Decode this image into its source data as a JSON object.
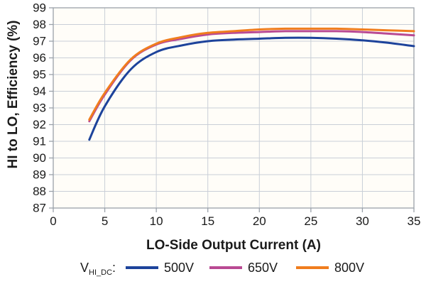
{
  "figure": {
    "background": "#ffffff",
    "plot_background": "#fffdf8"
  },
  "chart_data": {
    "type": "line",
    "title": "",
    "xlabel": "LO-Side Output Current (A)",
    "ylabel": "HI to LO, Efficiency (%)",
    "xlim": [
      0,
      35
    ],
    "ylim": [
      87,
      99
    ],
    "x_ticks": [
      0,
      5,
      10,
      15,
      20,
      25,
      30,
      35
    ],
    "y_ticks": [
      87,
      88,
      89,
      90,
      91,
      92,
      93,
      94,
      95,
      96,
      97,
      98,
      99
    ],
    "grid": true,
    "legend_position": "bottom",
    "x": [
      3.5,
      5,
      7.5,
      10,
      12.5,
      15,
      17.5,
      20,
      22.5,
      25,
      27.5,
      30,
      32.5,
      35
    ],
    "series": [
      {
        "name": "500V",
        "color": "#1d439b",
        "values": [
          91.1,
          93.1,
          95.3,
          96.35,
          96.75,
          97.0,
          97.1,
          97.15,
          97.2,
          97.2,
          97.15,
          97.05,
          96.9,
          96.7
        ]
      },
      {
        "name": "650V",
        "color": "#b94a93",
        "values": [
          92.2,
          93.8,
          95.85,
          96.8,
          97.15,
          97.4,
          97.5,
          97.55,
          97.6,
          97.6,
          97.6,
          97.55,
          97.45,
          97.35
        ]
      },
      {
        "name": "800V",
        "color": "#f07d1e",
        "values": [
          92.3,
          93.9,
          95.9,
          96.85,
          97.25,
          97.5,
          97.6,
          97.7,
          97.75,
          97.75,
          97.75,
          97.7,
          97.65,
          97.6
        ]
      }
    ],
    "legend": {
      "prefix_symbol": "V",
      "prefix_subscript": "HI_DC",
      "prefix_suffix": ":",
      "entries": [
        "500V",
        "650V",
        "800V"
      ]
    },
    "colors": {
      "gridline": "#c9cfd7",
      "axis": "#9aa1a9",
      "text": "#1a1a1a"
    }
  }
}
